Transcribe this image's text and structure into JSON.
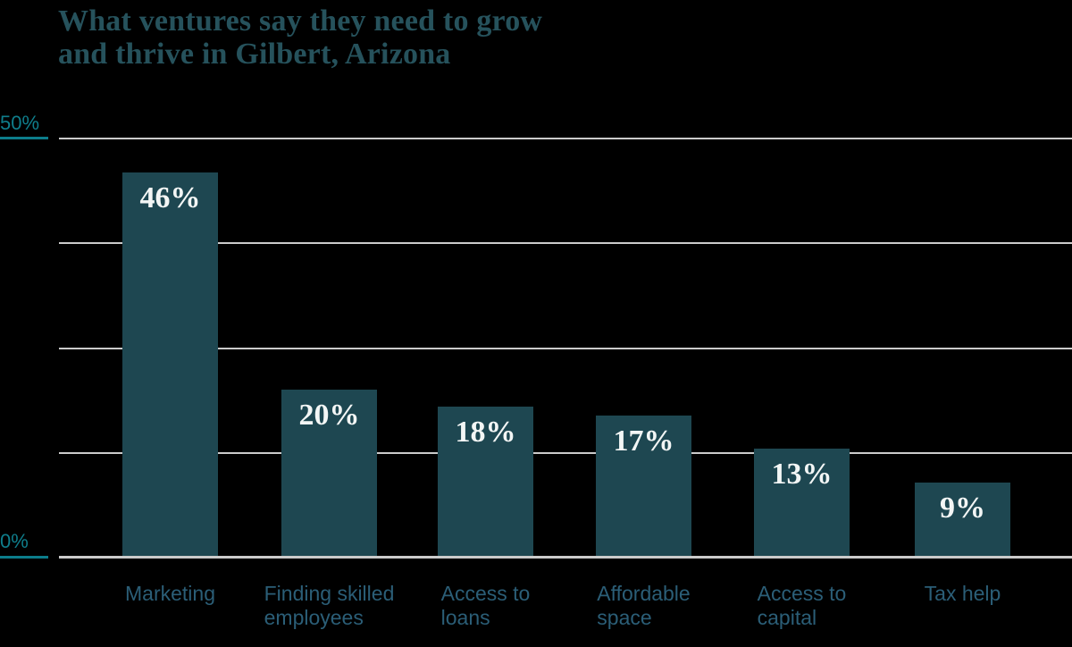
{
  "title": {
    "line1": "What ventures say they need to grow",
    "line2": "and thrive in Gilbert, Arizona"
  },
  "axis": {
    "top_label": "50%",
    "bottom_label": "0%"
  },
  "chart_data": {
    "type": "bar",
    "title": "What ventures say they need to grow and thrive in Gilbert, Arizona",
    "categories": [
      "Marketing",
      "Finding skilled\nemployees",
      "Access to\nloans",
      "Affordable\nspace",
      "Access to\ncapital",
      "Tax help"
    ],
    "values": [
      46,
      20,
      18,
      17,
      13,
      9
    ],
    "value_labels": [
      "46%",
      "20%",
      "18%",
      "17%",
      "13%",
      "9%"
    ],
    "xlabel": "",
    "ylabel": "",
    "ylim": [
      0,
      50
    ],
    "yticks_labeled": [
      "0%",
      "50%"
    ],
    "gridlines_percent": [
      0,
      12.5,
      25,
      37.5,
      50
    ],
    "grid": "on",
    "legend": "none",
    "value_labels_position": "inside-top",
    "bar_color": "#1e4751"
  },
  "colors": {
    "background": "#000000",
    "bar": "#1e4751",
    "title": "#26525c",
    "category_label": "#2b5e77",
    "axis_label": "#0f7e8c",
    "tick_line": "#0c7d8b",
    "gridline": "#cbcbcb",
    "value_label": "#f3f6f5"
  }
}
